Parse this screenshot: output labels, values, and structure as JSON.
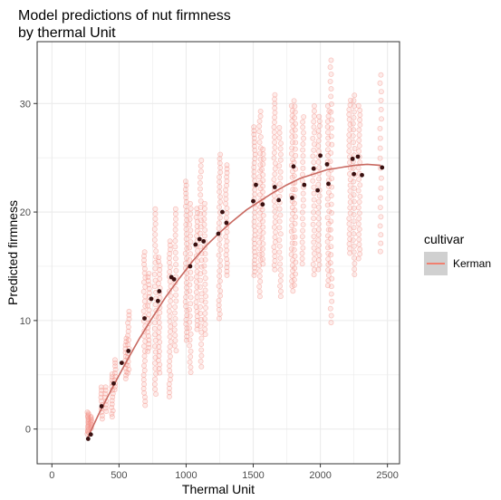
{
  "chart_data": {
    "type": "scatter",
    "title_lines": [
      "Model predictions of nut firmness",
      "by thermal Unit"
    ],
    "xlabel": "Thermal Unit",
    "ylabel": "Predicted firmness",
    "xlim": [
      -110,
      2590
    ],
    "ylim": [
      -3.2,
      35.7
    ],
    "x_ticks": [
      0,
      500,
      1000,
      1500,
      2000,
      2500
    ],
    "y_ticks": [
      0,
      10,
      20,
      30
    ],
    "grid": true,
    "legend": {
      "title": "cultivar",
      "position": "right",
      "entries": [
        {
          "label": "Kerman",
          "color": "#f08070"
        }
      ]
    },
    "colors": {
      "observed": "#f4948a",
      "predicted": "#3a1010",
      "fit": "#c96a62",
      "grid": "#ebebeb",
      "panel_border": "#333333"
    },
    "fit_curve": {
      "x": [
        270,
        350,
        450,
        550,
        650,
        750,
        850,
        950,
        1050,
        1150,
        1250,
        1350,
        1450,
        1550,
        1650,
        1750,
        1850,
        1950,
        2050,
        2150,
        2250,
        2350,
        2450
      ],
      "y": [
        -0.7,
        1.4,
        3.8,
        6.1,
        8.3,
        10.3,
        12.2,
        13.9,
        15.5,
        16.9,
        18.1,
        19.2,
        20.2,
        21.0,
        21.8,
        22.5,
        23.1,
        23.5,
        23.9,
        24.1,
        24.3,
        24.4,
        24.3
      ]
    },
    "predicted_points": [
      {
        "x": 270,
        "y": -0.9
      },
      {
        "x": 290,
        "y": -0.5
      },
      {
        "x": 370,
        "y": 2.1
      },
      {
        "x": 460,
        "y": 4.2
      },
      {
        "x": 520,
        "y": 6.1
      },
      {
        "x": 570,
        "y": 7.2
      },
      {
        "x": 690,
        "y": 10.2
      },
      {
        "x": 740,
        "y": 12.0
      },
      {
        "x": 790,
        "y": 11.8
      },
      {
        "x": 800,
        "y": 12.7
      },
      {
        "x": 890,
        "y": 14.0
      },
      {
        "x": 910,
        "y": 13.8
      },
      {
        "x": 1030,
        "y": 15.0
      },
      {
        "x": 1070,
        "y": 17.0
      },
      {
        "x": 1100,
        "y": 17.5
      },
      {
        "x": 1130,
        "y": 17.3
      },
      {
        "x": 1240,
        "y": 18.0
      },
      {
        "x": 1270,
        "y": 20.0
      },
      {
        "x": 1300,
        "y": 19.0
      },
      {
        "x": 1500,
        "y": 21.0
      },
      {
        "x": 1520,
        "y": 22.5
      },
      {
        "x": 1570,
        "y": 20.7
      },
      {
        "x": 1660,
        "y": 22.3
      },
      {
        "x": 1690,
        "y": 21.1
      },
      {
        "x": 1790,
        "y": 21.3
      },
      {
        "x": 1800,
        "y": 24.2
      },
      {
        "x": 1880,
        "y": 22.5
      },
      {
        "x": 1950,
        "y": 24.0
      },
      {
        "x": 1980,
        "y": 22.0
      },
      {
        "x": 2000,
        "y": 25.2
      },
      {
        "x": 2050,
        "y": 24.4
      },
      {
        "x": 2060,
        "y": 22.6
      },
      {
        "x": 2240,
        "y": 24.9
      },
      {
        "x": 2250,
        "y": 23.5
      },
      {
        "x": 2280,
        "y": 25.1
      },
      {
        "x": 2310,
        "y": 23.4
      },
      {
        "x": 2460,
        "y": 24.1
      }
    ],
    "observed_columns": [
      {
        "x": 270,
        "ymin": -0.5,
        "ymax": 1.6,
        "n": 18
      },
      {
        "x": 290,
        "ymin": 0.0,
        "ymax": 1.2,
        "n": 10
      },
      {
        "x": 370,
        "ymin": 0.8,
        "ymax": 4.0,
        "n": 10
      },
      {
        "x": 400,
        "ymin": 1.5,
        "ymax": 4.0,
        "n": 8
      },
      {
        "x": 450,
        "ymin": 1.0,
        "ymax": 5.2,
        "n": 14
      },
      {
        "x": 470,
        "ymin": 3.5,
        "ymax": 6.5,
        "n": 10
      },
      {
        "x": 550,
        "ymin": 4.5,
        "ymax": 8.5,
        "n": 12
      },
      {
        "x": 570,
        "ymin": 5.0,
        "ymax": 11.0,
        "n": 16
      },
      {
        "x": 690,
        "ymin": 2.0,
        "ymax": 16.5,
        "n": 34
      },
      {
        "x": 720,
        "ymin": 7.0,
        "ymax": 14.5,
        "n": 20
      },
      {
        "x": 770,
        "ymin": 3.0,
        "ymax": 20.5,
        "n": 34
      },
      {
        "x": 800,
        "ymin": 5.0,
        "ymax": 16.0,
        "n": 26
      },
      {
        "x": 880,
        "ymin": 2.8,
        "ymax": 17.5,
        "n": 34
      },
      {
        "x": 920,
        "ymin": 7.0,
        "ymax": 20.5,
        "n": 26
      },
      {
        "x": 1000,
        "ymin": 8.0,
        "ymax": 23.0,
        "n": 36
      },
      {
        "x": 1030,
        "ymin": 5.0,
        "ymax": 21.0,
        "n": 30
      },
      {
        "x": 1080,
        "ymin": 9.0,
        "ymax": 20.5,
        "n": 26
      },
      {
        "x": 1110,
        "ymin": 5.5,
        "ymax": 25.0,
        "n": 34
      },
      {
        "x": 1140,
        "ymin": 8.5,
        "ymax": 21.0,
        "n": 24
      },
      {
        "x": 1250,
        "ymin": 10.0,
        "ymax": 25.5,
        "n": 34
      },
      {
        "x": 1300,
        "ymin": 14.0,
        "ymax": 24.5,
        "n": 26
      },
      {
        "x": 1510,
        "ymin": 14.0,
        "ymax": 28.0,
        "n": 36
      },
      {
        "x": 1550,
        "ymin": 12.0,
        "ymax": 29.5,
        "n": 34
      },
      {
        "x": 1570,
        "ymin": 15.0,
        "ymax": 26.0,
        "n": 22
      },
      {
        "x": 1660,
        "ymin": 14.5,
        "ymax": 31.0,
        "n": 36
      },
      {
        "x": 1700,
        "ymin": 12.0,
        "ymax": 28.0,
        "n": 30
      },
      {
        "x": 1790,
        "ymin": 12.5,
        "ymax": 30.0,
        "n": 34
      },
      {
        "x": 1810,
        "ymin": 13.0,
        "ymax": 30.5,
        "n": 30
      },
      {
        "x": 1870,
        "ymin": 15.0,
        "ymax": 29.0,
        "n": 26
      },
      {
        "x": 1950,
        "ymin": 14.0,
        "ymax": 30.0,
        "n": 30
      },
      {
        "x": 1990,
        "ymin": 14.5,
        "ymax": 29.0,
        "n": 30
      },
      {
        "x": 2060,
        "ymin": 13.0,
        "ymax": 30.0,
        "n": 32
      },
      {
        "x": 2080,
        "ymin": 9.5,
        "ymax": 34.3,
        "n": 34
      },
      {
        "x": 2220,
        "ymin": 16.0,
        "ymax": 30.5,
        "n": 30
      },
      {
        "x": 2250,
        "ymin": 14.0,
        "ymax": 31.0,
        "n": 30
      },
      {
        "x": 2290,
        "ymin": 15.5,
        "ymax": 30.0,
        "n": 30
      },
      {
        "x": 2450,
        "ymin": 16.0,
        "ymax": 33.0,
        "n": 20
      }
    ]
  }
}
